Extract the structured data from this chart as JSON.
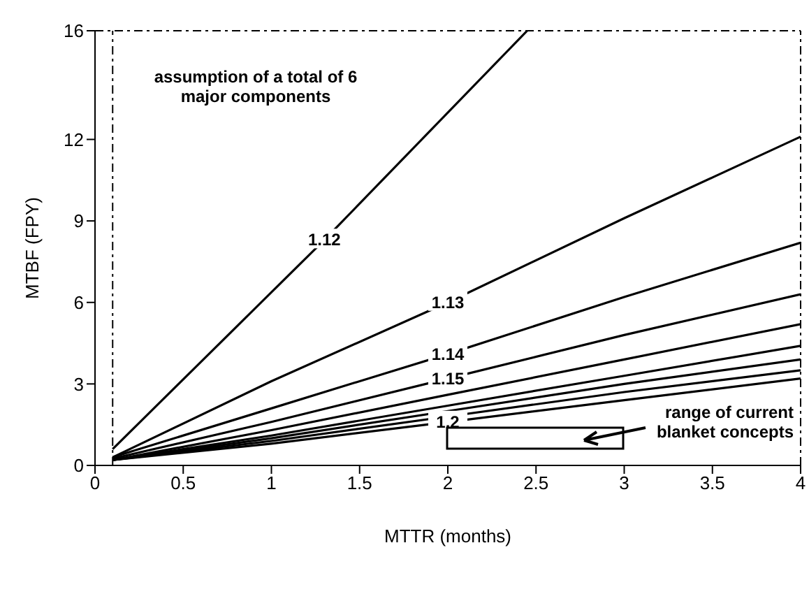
{
  "chart_data": {
    "type": "line",
    "xlabel": "MTTR (months)",
    "ylabel": "MTBF (FPY)",
    "xlim": [
      0,
      4
    ],
    "xticks": [
      0,
      0.5,
      1,
      1.5,
      2,
      2.5,
      3,
      3.5,
      4
    ],
    "ylim": [
      0,
      16
    ],
    "yticks": [
      0,
      3,
      6,
      9,
      12,
      16
    ],
    "marker": "none",
    "line_style": "solid",
    "series": [
      {
        "name": "1.12",
        "color": "#000000",
        "x": [
          0.1,
          1.3,
          2.45
        ],
        "values": [
          0.6,
          8.3,
          16
        ]
      },
      {
        "name": "1.13",
        "color": "#000000",
        "x": [
          0.1,
          1,
          2,
          3,
          4
        ],
        "values": [
          0.3,
          3.1,
          6.0,
          9.1,
          12.1
        ]
      },
      {
        "name": "1.14",
        "color": "#000000",
        "x": [
          0.1,
          1,
          2,
          3,
          4
        ],
        "values": [
          0.3,
          2.1,
          4.1,
          6.2,
          8.2
        ]
      },
      {
        "name": "1.15",
        "color": "#000000",
        "x": [
          0.1,
          1,
          2,
          3,
          4
        ],
        "values": [
          0.25,
          1.6,
          3.2,
          4.8,
          6.3
        ]
      },
      {
        "color": "#000000",
        "x": [
          0.1,
          1,
          2,
          3,
          4
        ],
        "values": [
          0.2,
          1.3,
          2.6,
          3.9,
          5.2
        ]
      },
      {
        "color": "#000000",
        "x": [
          0.1,
          1,
          2,
          3,
          4
        ],
        "values": [
          0.2,
          1.1,
          2.2,
          3.3,
          4.4
        ]
      },
      {
        "color": "#000000",
        "x": [
          0.1,
          1,
          2,
          3,
          4
        ],
        "values": [
          0.2,
          1.0,
          2.0,
          3.0,
          3.9
        ]
      },
      {
        "color": "#000000",
        "x": [
          0.1,
          1,
          2,
          3,
          4
        ],
        "values": [
          0.2,
          0.9,
          1.8,
          2.7,
          3.5
        ]
      },
      {
        "name": "1.2",
        "color": "#000000",
        "x": [
          0.1,
          1,
          2,
          3,
          4
        ],
        "values": [
          0.2,
          0.8,
          1.6,
          2.4,
          3.2
        ]
      }
    ],
    "ref_lines": [
      {
        "axis": "x",
        "value": 0.1,
        "line_style": "dashed"
      }
    ],
    "annotations": [
      "assumption of a total of 6 major components",
      "range of current blanket concepts"
    ]
  }
}
